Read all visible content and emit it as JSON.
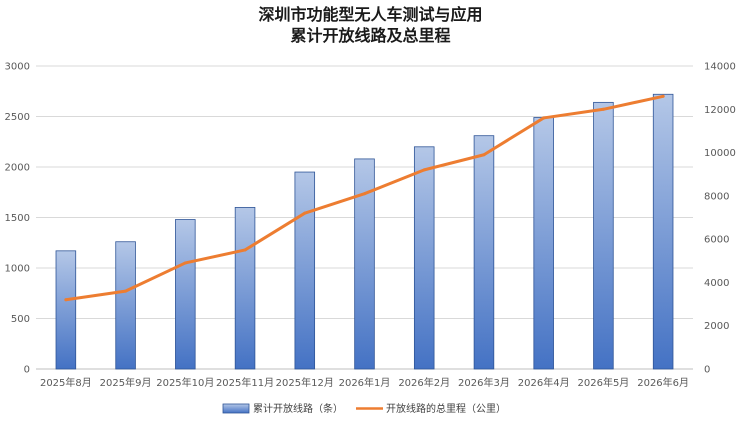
{
  "chart_data": {
    "type": "bar",
    "title_lines": [
      "深圳市功能型无人车测试与应用",
      "累计开放线路及总里程"
    ],
    "categories": [
      "2025年8月",
      "2025年9月",
      "2025年10月",
      "2025年11月",
      "2025年12月",
      "2026年1月",
      "2026年2月",
      "2026年3月",
      "2026年4月",
      "2026年5月",
      "2026年6月"
    ],
    "series": [
      {
        "name": "累计开放线路（条）",
        "type": "bar",
        "axis": "left",
        "color": "#4472C4",
        "values": [
          1170,
          1260,
          1480,
          1600,
          1950,
          2080,
          2200,
          2310,
          2490,
          2640,
          2720
        ]
      },
      {
        "name": "开放线路的总里程（公里）",
        "type": "line",
        "axis": "right",
        "color": "#ED7D31",
        "values": [
          3200,
          3600,
          4900,
          5500,
          7200,
          8100,
          9200,
          9900,
          11600,
          12000,
          12600
        ]
      }
    ],
    "y_left": {
      "min": 0,
      "max": 3000,
      "ticks": [
        0,
        500,
        1000,
        1500,
        2000,
        2500,
        3000
      ]
    },
    "y_right": {
      "min": 0,
      "max": 14000,
      "ticks": [
        0,
        2000,
        4000,
        6000,
        8000,
        10000,
        12000,
        14000
      ]
    },
    "grid": true,
    "legend": "bottom"
  }
}
